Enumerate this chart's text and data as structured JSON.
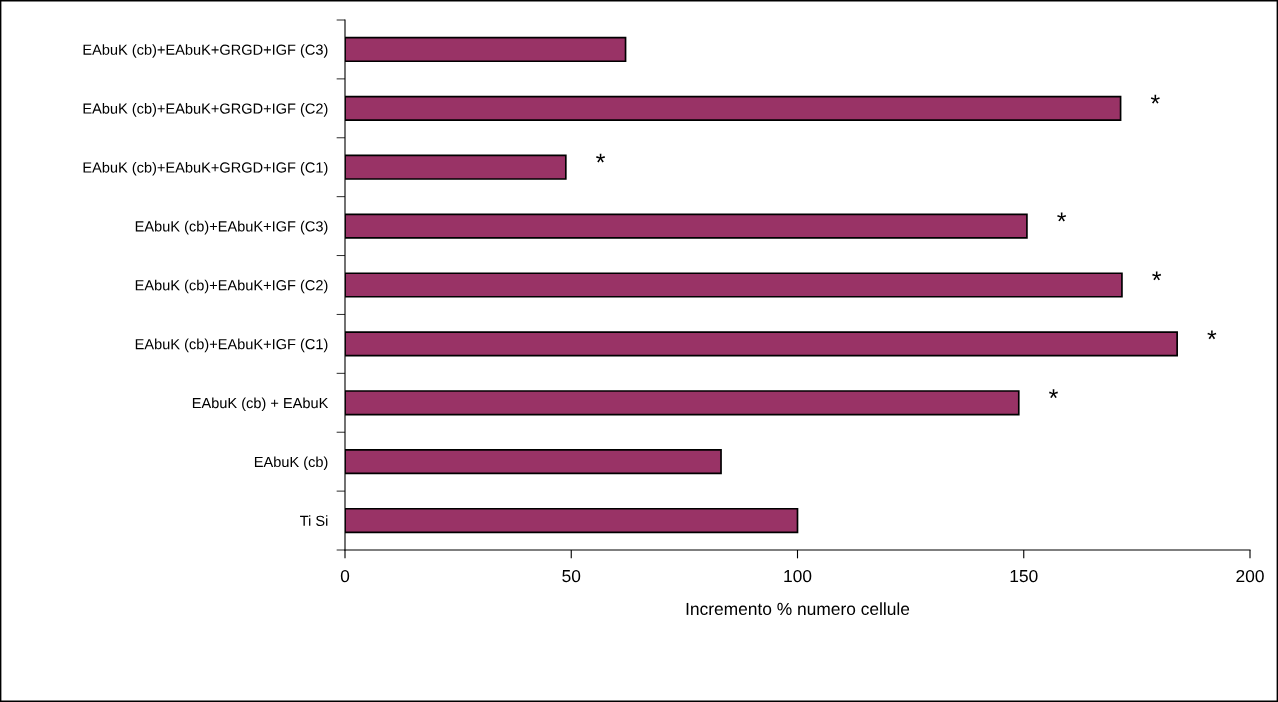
{
  "chart_data": {
    "type": "bar",
    "orientation": "horizontal",
    "xlabel": "Incremento % numero cellule",
    "categories": [
      "EAbuK (cb)+EAbuK+GRGD+IGF (C3)",
      "EAbuK (cb)+EAbuK+GRGD+IGF (C2)",
      "EAbuK (cb)+EAbuK+GRGD+IGF (C1)",
      "EAbuK (cb)+EAbuK+IGF (C3)",
      "EAbuK (cb)+EAbuK+IGF (C2)",
      "EAbuK (cb)+EAbuK+IGF (C1)",
      "EAbuK (cb) + EAbuK",
      "EAbuK (cb)",
      "Ti Si"
    ],
    "values": [
      62,
      171.4,
      48.8,
      150.7,
      171.7,
      183.9,
      148.9,
      83.1,
      100
    ],
    "color": "#993366",
    "xlim": [
      0,
      200
    ],
    "xticks": [
      0,
      50,
      100,
      150,
      200
    ],
    "grid": false,
    "legend": false,
    "annotations": [
      {
        "text": "*",
        "x": 171.4,
        "y": "EAbuK (cb)+EAbuK+GRGD+IGF (C2)"
      },
      {
        "text": "*",
        "x": 48.8,
        "y": "EAbuK (cb)+EAbuK+GRGD+IGF (C1)"
      },
      {
        "text": "*",
        "x": 150.7,
        "y": "EAbuK (cb)+EAbuK+IGF (C3)"
      },
      {
        "text": "*",
        "x": 171.7,
        "y": "EAbuK (cb)+EAbuK+IGF (C2)"
      },
      {
        "text": "*",
        "x": 183.9,
        "y": "EAbuK (cb)+EAbuK+IGF (C1)"
      },
      {
        "text": "*",
        "x": 148.9,
        "y": "EAbuK (cb) + EAbuK"
      }
    ]
  }
}
